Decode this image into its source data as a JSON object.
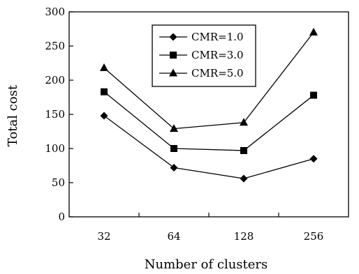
{
  "chart_data": {
    "type": "line",
    "title": "",
    "xlabel": "Number of clusters",
    "ylabel": "Total cost",
    "categories": [
      "32",
      "64",
      "128",
      "256"
    ],
    "ylim": [
      0,
      300
    ],
    "yticks": [
      0,
      50,
      100,
      150,
      200,
      250,
      300
    ],
    "ytick_labels": [
      "0",
      "50",
      "100",
      "150",
      "200",
      "250",
      "300"
    ],
    "grid": false,
    "legend_position": "top-center",
    "series": [
      {
        "name": "CMR=1.0",
        "marker": "diamond",
        "values": [
          148,
          72,
          56,
          85
        ]
      },
      {
        "name": "CMR=3.0",
        "marker": "square",
        "values": [
          183,
          100,
          97,
          178
        ]
      },
      {
        "name": "CMR=5.0",
        "marker": "triangle",
        "values": [
          218,
          129,
          138,
          270
        ]
      }
    ],
    "colors": {
      "line": "#000000",
      "background": "#ffffff"
    }
  }
}
